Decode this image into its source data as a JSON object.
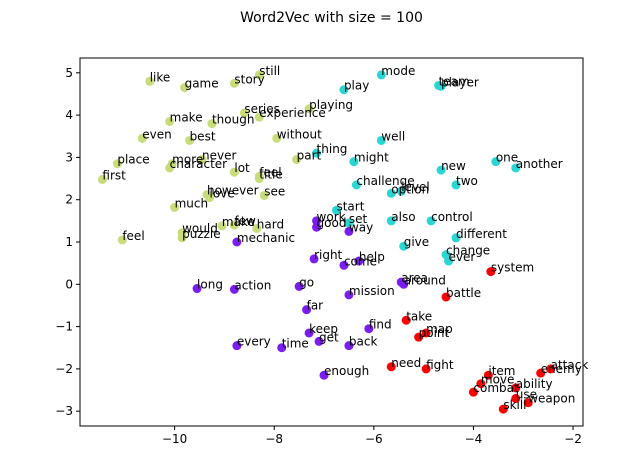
{
  "chart_data": {
    "type": "scatter",
    "title": "Word2Vec with size = 100",
    "xlabel": "",
    "ylabel": "",
    "xlim": [
      -11.9,
      -1.8
    ],
    "ylim": [
      -3.35,
      5.35
    ],
    "xticks": [
      -10,
      -8,
      -6,
      -4,
      -2
    ],
    "yticks": [
      -3,
      -2,
      -1,
      0,
      1,
      2,
      3,
      4,
      5
    ],
    "grid": false,
    "colors": {
      "olive": "#c8dc7a",
      "cyan": "#28d7d3",
      "purple": "#7b1cf1",
      "red": "#ff0000"
    },
    "points": [
      {
        "word": "still",
        "x": -8.3,
        "y": 4.95,
        "color": "olive"
      },
      {
        "word": "like",
        "x": -10.5,
        "y": 4.8,
        "color": "olive"
      },
      {
        "word": "game",
        "x": -9.8,
        "y": 4.65,
        "color": "olive"
      },
      {
        "word": "story",
        "x": -8.8,
        "y": 4.75,
        "color": "olive"
      },
      {
        "word": "series",
        "x": -8.6,
        "y": 4.05,
        "color": "olive"
      },
      {
        "word": "playing",
        "x": -7.3,
        "y": 4.15,
        "color": "olive"
      },
      {
        "word": "experience",
        "x": -8.3,
        "y": 3.95,
        "color": "olive"
      },
      {
        "word": "make",
        "x": -10.1,
        "y": 3.85,
        "color": "olive"
      },
      {
        "word": "though",
        "x": -9.25,
        "y": 3.8,
        "color": "olive"
      },
      {
        "word": "even",
        "x": -10.65,
        "y": 3.45,
        "color": "olive"
      },
      {
        "word": "best",
        "x": -9.7,
        "y": 3.4,
        "color": "olive"
      },
      {
        "word": "without",
        "x": -7.95,
        "y": 3.45,
        "color": "olive"
      },
      {
        "word": "never",
        "x": -9.45,
        "y": 2.95,
        "color": "olive"
      },
      {
        "word": "place",
        "x": -11.15,
        "y": 2.85,
        "color": "olive"
      },
      {
        "word": "more",
        "x": -10.05,
        "y": 2.85,
        "color": "olive"
      },
      {
        "word": "character",
        "x": -10.1,
        "y": 2.75,
        "color": "olive"
      },
      {
        "word": "lot",
        "x": -8.8,
        "y": 2.65,
        "color": "olive"
      },
      {
        "word": "part",
        "x": -7.55,
        "y": 2.95,
        "color": "olive"
      },
      {
        "word": "first",
        "x": -11.45,
        "y": 2.48,
        "color": "olive"
      },
      {
        "word": "feel",
        "x": -8.3,
        "y": 2.55,
        "color": "olive"
      },
      {
        "word": "title",
        "x": -8.3,
        "y": 2.5,
        "color": "olive"
      },
      {
        "word": "however",
        "x": -9.35,
        "y": 2.12,
        "color": "olive"
      },
      {
        "word": "love",
        "x": -9.3,
        "y": 2.05,
        "color": "olive"
      },
      {
        "word": "see",
        "x": -8.2,
        "y": 2.1,
        "color": "olive"
      },
      {
        "word": "much",
        "x": -10.0,
        "y": 1.82,
        "color": "olive"
      },
      {
        "word": "would",
        "x": -9.85,
        "y": 1.22,
        "color": "olive"
      },
      {
        "word": "puzzle",
        "x": -9.85,
        "y": 1.1,
        "color": "olive"
      },
      {
        "word": "make",
        "x": -9.05,
        "y": 1.38,
        "color": "olive"
      },
      {
        "word": "few",
        "x": -8.8,
        "y": 1.4,
        "color": "olive"
      },
      {
        "word": "hard",
        "x": -8.35,
        "y": 1.32,
        "color": "olive"
      },
      {
        "word": "feel",
        "x": -11.05,
        "y": 1.05,
        "color": "olive"
      },
      {
        "word": "mode",
        "x": -5.85,
        "y": 4.95,
        "color": "cyan"
      },
      {
        "word": "play",
        "x": -6.6,
        "y": 4.6,
        "color": "cyan"
      },
      {
        "word": "team",
        "x": -4.7,
        "y": 4.7,
        "color": "cyan"
      },
      {
        "word": "player",
        "x": -4.65,
        "y": 4.68,
        "color": "cyan"
      },
      {
        "word": "well",
        "x": -5.85,
        "y": 3.4,
        "color": "cyan"
      },
      {
        "word": "thing",
        "x": -7.15,
        "y": 3.1,
        "color": "cyan"
      },
      {
        "word": "might",
        "x": -6.4,
        "y": 2.9,
        "color": "cyan"
      },
      {
        "word": "new",
        "x": -4.65,
        "y": 2.7,
        "color": "cyan"
      },
      {
        "word": "one",
        "x": -3.55,
        "y": 2.9,
        "color": "cyan"
      },
      {
        "word": "another",
        "x": -3.15,
        "y": 2.75,
        "color": "cyan"
      },
      {
        "word": "challenge",
        "x": -6.35,
        "y": 2.35,
        "color": "cyan"
      },
      {
        "word": "option",
        "x": -5.65,
        "y": 2.15,
        "color": "cyan"
      },
      {
        "word": "level",
        "x": -5.45,
        "y": 2.2,
        "color": "cyan"
      },
      {
        "word": "two",
        "x": -4.35,
        "y": 2.35,
        "color": "cyan"
      },
      {
        "word": "start",
        "x": -6.75,
        "y": 1.75,
        "color": "cyan"
      },
      {
        "word": "set",
        "x": -6.5,
        "y": 1.45,
        "color": "cyan"
      },
      {
        "word": "also",
        "x": -5.65,
        "y": 1.5,
        "color": "cyan"
      },
      {
        "word": "control",
        "x": -4.85,
        "y": 1.5,
        "color": "cyan"
      },
      {
        "word": "different",
        "x": -4.35,
        "y": 1.1,
        "color": "cyan"
      },
      {
        "word": "give",
        "x": -5.4,
        "y": 0.9,
        "color": "cyan"
      },
      {
        "word": "change",
        "x": -4.55,
        "y": 0.7,
        "color": "cyan"
      },
      {
        "word": "ever",
        "x": -4.5,
        "y": 0.55,
        "color": "cyan"
      },
      {
        "word": "work",
        "x": -7.15,
        "y": 1.5,
        "color": "purple"
      },
      {
        "word": "good",
        "x": -7.15,
        "y": 1.35,
        "color": "purple"
      },
      {
        "word": "way",
        "x": -6.5,
        "y": 1.25,
        "color": "purple"
      },
      {
        "word": "mechanic",
        "x": -8.75,
        "y": 1.0,
        "color": "purple"
      },
      {
        "word": "right",
        "x": -7.2,
        "y": 0.6,
        "color": "purple"
      },
      {
        "word": "help",
        "x": -6.3,
        "y": 0.55,
        "color": "purple"
      },
      {
        "word": "come",
        "x": -6.6,
        "y": 0.45,
        "color": "purple"
      },
      {
        "word": "area",
        "x": -5.45,
        "y": 0.05,
        "color": "purple"
      },
      {
        "word": "around",
        "x": -5.4,
        "y": 0.0,
        "color": "purple"
      },
      {
        "word": "long",
        "x": -9.55,
        "y": -0.1,
        "color": "purple"
      },
      {
        "word": "action",
        "x": -8.8,
        "y": -0.12,
        "color": "purple"
      },
      {
        "word": "go",
        "x": -7.5,
        "y": -0.05,
        "color": "purple"
      },
      {
        "word": "mission",
        "x": -6.5,
        "y": -0.25,
        "color": "purple"
      },
      {
        "word": "far",
        "x": -7.35,
        "y": -0.6,
        "color": "purple"
      },
      {
        "word": "keep",
        "x": -7.3,
        "y": -1.15,
        "color": "purple"
      },
      {
        "word": "find",
        "x": -6.1,
        "y": -1.05,
        "color": "purple"
      },
      {
        "word": "get",
        "x": -7.1,
        "y": -1.35,
        "color": "purple"
      },
      {
        "word": "back",
        "x": -6.5,
        "y": -1.45,
        "color": "purple"
      },
      {
        "word": "every",
        "x": -8.75,
        "y": -1.45,
        "color": "purple"
      },
      {
        "word": "time",
        "x": -7.85,
        "y": -1.5,
        "color": "purple"
      },
      {
        "word": "enough",
        "x": -7.0,
        "y": -2.15,
        "color": "purple"
      },
      {
        "word": "system",
        "x": -3.65,
        "y": 0.3,
        "color": "red"
      },
      {
        "word": "battle",
        "x": -4.55,
        "y": -0.3,
        "color": "red"
      },
      {
        "word": "take",
        "x": -5.35,
        "y": -0.85,
        "color": "red"
      },
      {
        "word": "map",
        "x": -4.95,
        "y": -1.15,
        "color": "red"
      },
      {
        "word": "point",
        "x": -5.1,
        "y": -1.25,
        "color": "red"
      },
      {
        "word": "need",
        "x": -5.65,
        "y": -1.95,
        "color": "red"
      },
      {
        "word": "fight",
        "x": -4.95,
        "y": -2.0,
        "color": "red"
      },
      {
        "word": "item",
        "x": -3.7,
        "y": -2.15,
        "color": "red"
      },
      {
        "word": "move",
        "x": -3.85,
        "y": -2.35,
        "color": "red"
      },
      {
        "word": "enemy",
        "x": -2.65,
        "y": -2.1,
        "color": "red"
      },
      {
        "word": "attack",
        "x": -2.45,
        "y": -2.0,
        "color": "red"
      },
      {
        "word": "combat",
        "x": -4.0,
        "y": -2.55,
        "color": "red"
      },
      {
        "word": "ability",
        "x": -3.15,
        "y": -2.45,
        "color": "red"
      },
      {
        "word": "use",
        "x": -3.15,
        "y": -2.7,
        "color": "red"
      },
      {
        "word": "weapon",
        "x": -2.9,
        "y": -2.8,
        "color": "red"
      },
      {
        "word": "skill",
        "x": -3.4,
        "y": -2.95,
        "color": "red"
      }
    ]
  }
}
